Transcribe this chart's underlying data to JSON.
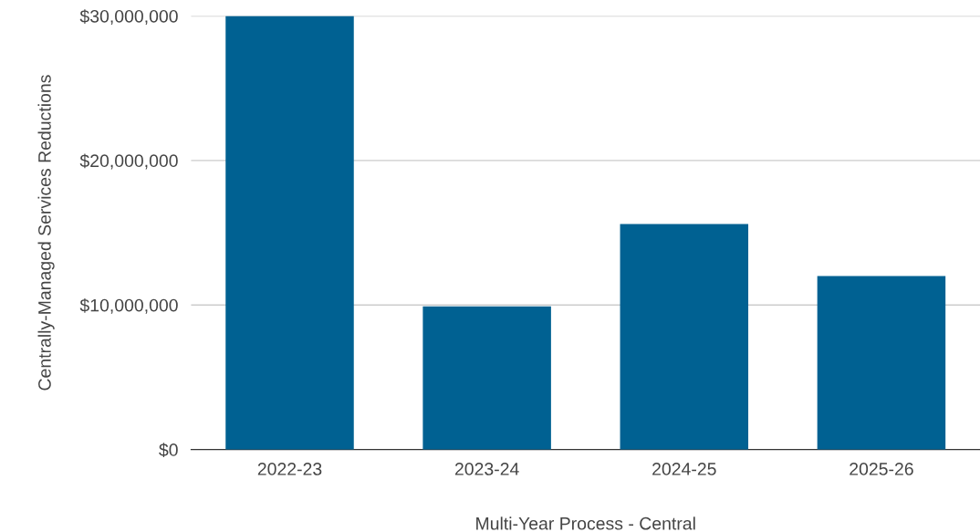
{
  "chart_data": {
    "type": "bar",
    "xlabel": "Multi-Year Process - Central",
    "ylabel": "Centrally-Managed Services Reductions",
    "categories": [
      "2022-23",
      "2023-24",
      "2024-25",
      "2025-26"
    ],
    "values": [
      30000000,
      9900000,
      15600000,
      12000000
    ],
    "color": "#006192",
    "ylim": [
      0,
      30000000
    ],
    "yticks": [
      {
        "value": 0,
        "label": "$0"
      },
      {
        "value": 10000000,
        "label": "$10,000,000"
      },
      {
        "value": 20000000,
        "label": "$20,000,000"
      },
      {
        "value": 30000000,
        "label": "$30,000,000"
      }
    ],
    "grid": "y",
    "legend": false
  }
}
